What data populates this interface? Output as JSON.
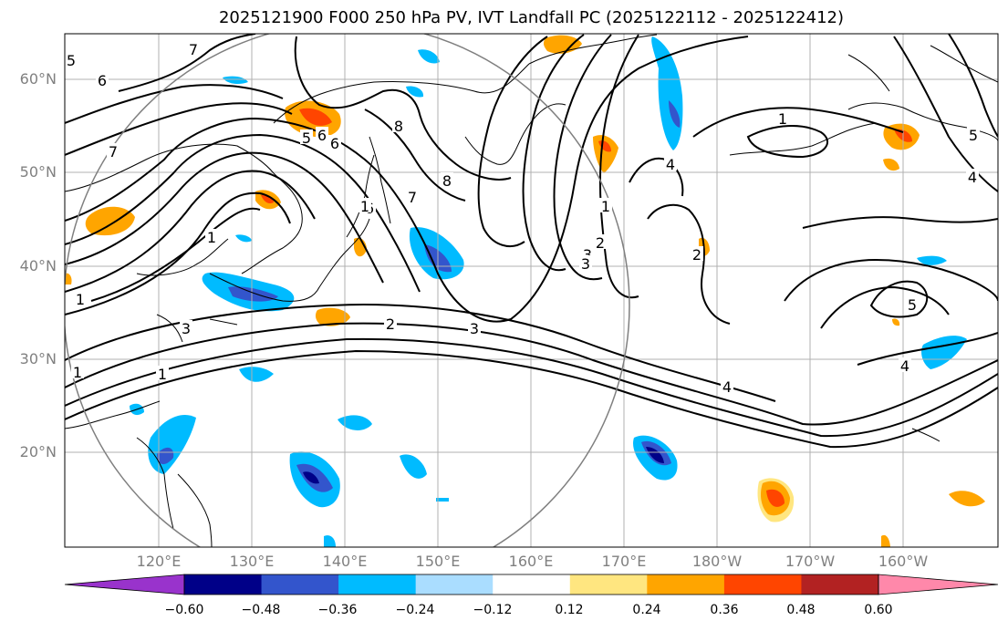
{
  "title": "2025121900 F000 250 hPa PV, IVT Landfall PC (2025122112 - 2025122412)",
  "lat_labels": [
    "60°N",
    "50°N",
    "40°N",
    "30°N",
    "20°N"
  ],
  "lon_labels": [
    "120°E",
    "130°E",
    "140°E",
    "150°E",
    "160°E",
    "170°E",
    "180°W",
    "170°W",
    "160°W"
  ],
  "colorbar": {
    "ticks": [
      "−0.60",
      "−0.48",
      "−0.36",
      "−0.24",
      "−0.12",
      "0.12",
      "0.24",
      "0.36",
      "0.48",
      "0.60"
    ],
    "colors": [
      "#9933cc",
      "#000088",
      "#3355cc",
      "#00bbff",
      "#aaddff",
      "#ffffff",
      "#ffe680",
      "#ffa500",
      "#ff4500",
      "#b22222",
      "#ff88aa"
    ]
  },
  "contour_labels": [
    "7",
    "6",
    "7",
    "6",
    "5",
    "6",
    "8",
    "8",
    "7",
    "6",
    "1",
    "3",
    "3",
    "1",
    "1",
    "2",
    "3",
    "2",
    "3",
    "1",
    "4",
    "2",
    "1",
    "5",
    "4",
    "5",
    "4",
    "4",
    "1",
    "1",
    "5"
  ],
  "map_features": {
    "contour_variable": "250 hPa PV",
    "shading_variable": "IVT Landfall PC",
    "range_circle": true
  }
}
